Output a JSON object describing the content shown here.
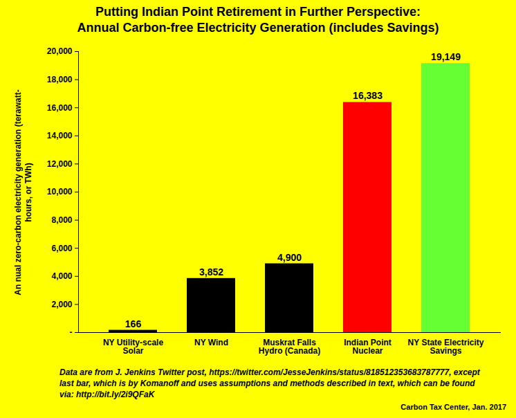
{
  "chart_data": {
    "type": "bar",
    "title": "Putting Indian Point Retirement in Further Perspective: Annual Carbon-free Electricity Generation (includes Savings)",
    "y_label": "An nual zero-carbon electricity generation (terawatt-hours, or TWh)",
    "categories": [
      "NY Utility-scale Solar",
      "NY Wind",
      "Muskrat Falls Hydro (Canada)",
      "Indian Point Nuclear",
      "NY State Electricity Savings"
    ],
    "values": [
      166,
      3852,
      4900,
      16383,
      19149
    ],
    "value_labels": [
      "166",
      "3,852",
      "4,900",
      "16,383",
      "19,149"
    ],
    "colors": [
      "#000000",
      "#000000",
      "#000000",
      "#FF0000",
      "#66FF33"
    ],
    "ylim": [
      0,
      20000
    ],
    "yticks": [
      {
        "value": 0,
        "label": "-"
      },
      {
        "value": 2000,
        "label": "2,000"
      },
      {
        "value": 4000,
        "label": "4,000"
      },
      {
        "value": 6000,
        "label": "6,000"
      },
      {
        "value": 8000,
        "label": "8,000"
      },
      {
        "value": 10000,
        "label": "10,000"
      },
      {
        "value": 12000,
        "label": "12,000"
      },
      {
        "value": 14000,
        "label": "14,000"
      },
      {
        "value": 16000,
        "label": "16,000"
      },
      {
        "value": 18000,
        "label": "18,000"
      },
      {
        "value": 20000,
        "label": "20,000"
      }
    ],
    "grid": false,
    "data_labels": true,
    "notes": "Data are from J. Jenkins Twitter post, https://twitter.com/JesseJenkins/status/818512353683787777, except last bar, which is by Komanoff and uses assumptions and methods described in text, which can be found via: http://bit.ly/2i9QFaK",
    "source": "Carbon Tax Center, Jan. 2017"
  }
}
